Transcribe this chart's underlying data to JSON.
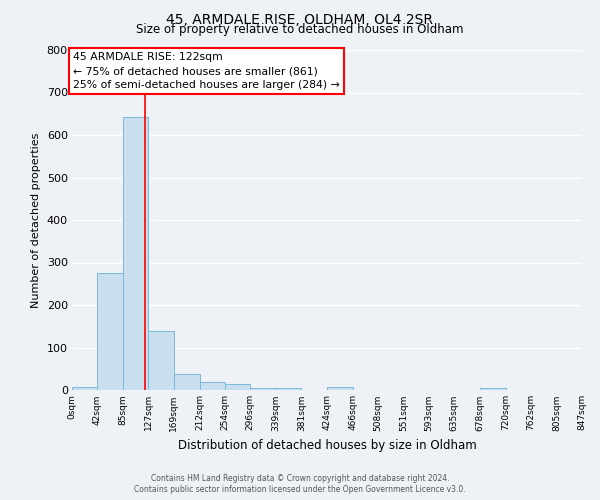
{
  "title": "45, ARMDALE RISE, OLDHAM, OL4 2SR",
  "subtitle": "Size of property relative to detached houses in Oldham",
  "xlabel": "Distribution of detached houses by size in Oldham",
  "ylabel": "Number of detached properties",
  "bar_color": "#c9dff0",
  "bar_edge_color": "#7ab8d9",
  "background_color": "#eef2f7",
  "grid_color": "#ffffff",
  "red_line_x": 122,
  "bin_edges": [
    0,
    42,
    85,
    127,
    169,
    212,
    254,
    296,
    339,
    381,
    424,
    466,
    508,
    551,
    593,
    635,
    678,
    720,
    762,
    805,
    847
  ],
  "bar_heights": [
    7,
    275,
    643,
    140,
    38,
    18,
    13,
    5,
    4,
    0,
    7,
    0,
    0,
    0,
    0,
    0,
    5,
    0,
    0,
    0
  ],
  "ylim": [
    0,
    800
  ],
  "yticks": [
    0,
    100,
    200,
    300,
    400,
    500,
    600,
    700,
    800
  ],
  "annotation_line1": "45 ARMDALE RISE: 122sqm",
  "annotation_line2": "← 75% of detached houses are smaller (861)",
  "annotation_line3": "25% of semi-detached houses are larger (284) →",
  "footer_line1": "Contains HM Land Registry data © Crown copyright and database right 2024.",
  "footer_line2": "Contains public sector information licensed under the Open Government Licence v3.0."
}
